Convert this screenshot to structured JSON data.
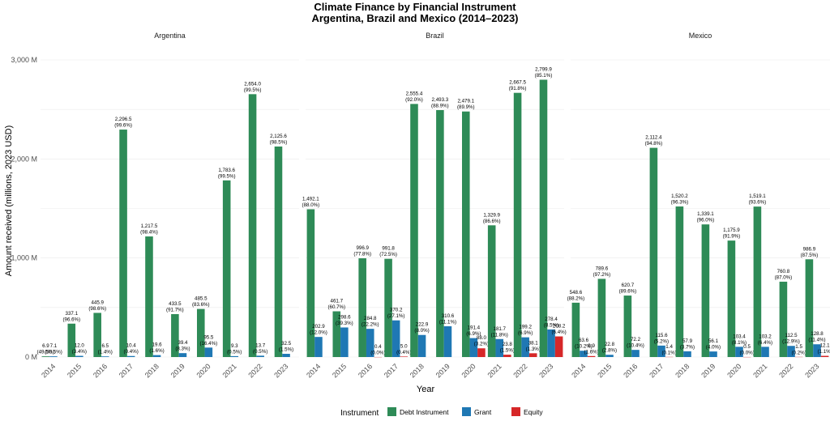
{
  "chart_data": {
    "type": "bar",
    "title": "Climate Finance by Financial Instrument",
    "subtitle": "Argentina, Brazil and Mexico (2014–2023)",
    "xlabel": "Year",
    "ylabel": "Amount received (millions, 2023 USD)",
    "ylim": [
      0,
      3000
    ],
    "yticks": [
      0,
      1000,
      2000,
      3000
    ],
    "ytick_labels": [
      "0 M",
      "1,000 M",
      "2,000 M",
      "3,000 M"
    ],
    "grid": true,
    "legend": {
      "title": "Instrument",
      "placement": "bottom",
      "items": [
        "Debt Instrument",
        "Grant",
        "Equity"
      ]
    },
    "colors": {
      "Debt Instrument": "#2e8b57",
      "Grant": "#1f78b4",
      "Equity": "#d62728"
    },
    "categories": [
      "2014",
      "2015",
      "2016",
      "2017",
      "2018",
      "2019",
      "2020",
      "2021",
      "2022",
      "2023"
    ],
    "panels": [
      {
        "name": "Argentina",
        "series": [
          {
            "name": "Debt Instrument",
            "values": [
              6.9,
              337.1,
              445.9,
              2296.5,
              1217.5,
              433.5,
              485.5,
              1783.6,
              2654.0,
              2125.6
            ],
            "labels": [
              "6.9\n(49.5%)",
              "337.1\n(96.6%)",
              "445.9\n(98.6%)",
              "2,296.5\n(99.6%)",
              "1,217.5\n(98.4%)",
              "433.5\n(91.7%)",
              "485.5\n(83.6%)",
              "1,783.6\n(99.5%)",
              "2,654.0\n(99.5%)",
              "2,125.6\n(98.5%)"
            ]
          },
          {
            "name": "Grant",
            "values": [
              7.1,
              12.0,
              6.5,
              10.4,
              19.6,
              39.4,
              95.5,
              9.3,
              13.7,
              32.5
            ],
            "labels": [
              "7.1\n(50.5%)",
              "12.0\n(3.4%)",
              "6.5\n(1.4%)",
              "10.4\n(0.4%)",
              "19.6\n(1.6%)",
              "39.4\n(8.3%)",
              "95.5\n(16.4%)",
              "9.3\n(0.5%)",
              "13.7\n(0.5%)",
              "32.5\n(1.5%)"
            ]
          },
          {
            "name": "Equity",
            "values": [
              null,
              null,
              null,
              null,
              null,
              null,
              null,
              null,
              null,
              null
            ],
            "labels": [
              "",
              "",
              "",
              "",
              "",
              "",
              "",
              "",
              "",
              ""
            ]
          }
        ]
      },
      {
        "name": "Brazil",
        "series": [
          {
            "name": "Debt Instrument",
            "values": [
              1492.1,
              461.7,
              996.9,
              991.8,
              2555.4,
              2493.3,
              2479.1,
              1329.9,
              2667.5,
              2799.9
            ],
            "labels": [
              "1,492.1\n(88.0%)",
              "461.7\n(60.7%)",
              "996.9\n(77.8%)",
              "991.8\n(72.5%)",
              "2,555.4\n(92.0%)",
              "2,493.3\n(88.9%)",
              "2,479.1\n(89.9%)",
              "1,329.9\n(86.6%)",
              "2,667.5\n(91.8%)",
              "2,799.9\n(85.1%)"
            ]
          },
          {
            "name": "Grant",
            "values": [
              202.9,
              298.6,
              284.8,
              370.2,
              222.9,
              310.6,
              191.4,
              181.7,
              199.2,
              278.4
            ],
            "labels": [
              "202.9\n(12.0%)",
              "298.6\n(39.3%)",
              "284.8\n(22.2%)",
              "370.2\n(27.1%)",
              "222.9\n(8.0%)",
              "310.6\n(11.1%)",
              "191.4\n(6.9%)",
              "181.7\n(11.8%)",
              "199.2\n(6.9%)",
              "278.4\n(8.5%)"
            ]
          },
          {
            "name": "Equity",
            "values": [
              null,
              null,
              0.4,
              5.0,
              null,
              null,
              88.0,
              23.8,
              38.1,
              208.2
            ],
            "labels": [
              "",
              "",
              "0.4\n(0.0%)",
              "5.0\n(0.4%)",
              "",
              "",
              "88.0\n(3.2%)",
              "23.8\n(1.5%)",
              "38.1\n(1.3%)",
              "208.2\n(6.4%)"
            ]
          }
        ]
      },
      {
        "name": "Mexico",
        "series": [
          {
            "name": "Debt Instrument",
            "values": [
              548.6,
              789.6,
              620.7,
              2112.4,
              1520.2,
              1339.1,
              1175.9,
              1519.1,
              760.8,
              986.9
            ],
            "labels": [
              "548.6\n(88.2%)",
              "789.6\n(97.2%)",
              "620.7\n(89.6%)",
              "2,112.4\n(94.8%)",
              "1,520.2\n(96.3%)",
              "1,339.1\n(96.0%)",
              "1,175.9\n(91.9%)",
              "1,519.1\n(93.6%)",
              "760.8\n(87.0%)",
              "986.9\n(87.5%)"
            ]
          },
          {
            "name": "Grant",
            "values": [
              63.6,
              22.8,
              72.2,
              115.6,
              57.9,
              56.1,
              103.4,
              103.2,
              112.5,
              128.8
            ],
            "labels": [
              "63.6\n(10.2%)",
              "22.8\n(2.8%)",
              "72.2\n(10.4%)",
              "115.6\n(5.2%)",
              "57.9\n(3.7%)",
              "56.1\n(4.0%)",
              "103.4\n(8.1%)",
              "103.2\n(6.4%)",
              "112.5\n(12.9%)",
              "128.8\n(11.4%)"
            ]
          },
          {
            "name": "Equity",
            "values": [
              9.9,
              null,
              null,
              1.4,
              null,
              null,
              0.5,
              null,
              1.5,
              12.1
            ],
            "labels": [
              "9.9\n(1.6%)",
              "",
              "",
              "1.4\n(0.1%)",
              "",
              "",
              "0.5\n(0.0%)",
              "",
              "1.5\n(0.2%)",
              "12.1\n(1.1%)"
            ]
          }
        ]
      }
    ]
  }
}
